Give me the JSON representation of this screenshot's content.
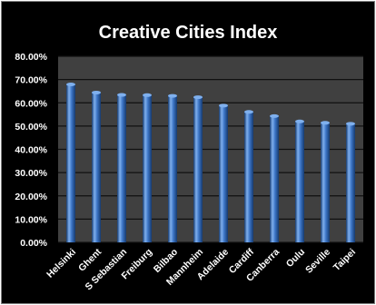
{
  "chart_data": {
    "type": "bar",
    "title": "Creative Cities Index",
    "xlabel": "",
    "ylabel": "",
    "categories": [
      "Helsinki",
      "Ghent",
      "S Sebastian",
      "Freiburg",
      "Bilbao",
      "Mannheim",
      "Adelaide",
      "Cardiff",
      "Canberra",
      "Oulu",
      "Seville",
      "Taipei"
    ],
    "values": [
      0.679,
      0.644,
      0.634,
      0.633,
      0.63,
      0.624,
      0.588,
      0.561,
      0.543,
      0.52,
      0.514,
      0.51
    ],
    "ylim": [
      0,
      0.8
    ],
    "yticks": [
      "0.00%",
      "10.00%",
      "20.00%",
      "30.00%",
      "40.00%",
      "50.00%",
      "60.00%",
      "70.00%",
      "80.00%"
    ],
    "grid": true,
    "legend": "none",
    "colors": {
      "background": "#000000",
      "plot_area": "#404040",
      "gridline": "#111111",
      "bar_light": "#7fb0ee",
      "bar_main": "#3b73c4",
      "bar_dark": "#163a6e",
      "text": "#ffffff"
    }
  }
}
